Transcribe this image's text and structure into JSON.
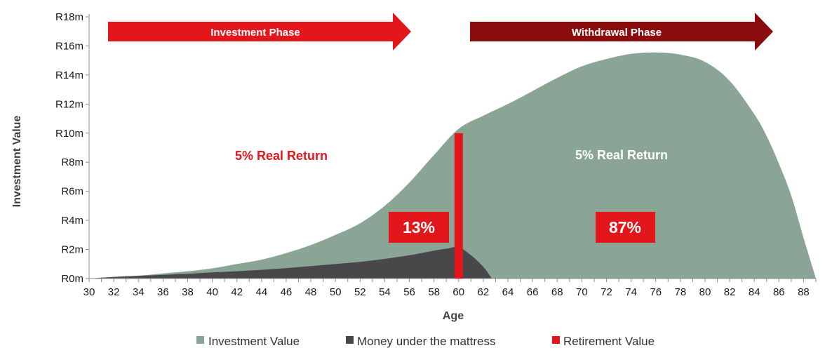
{
  "colors": {
    "investment": "#8aa595",
    "mattress": "#48484a",
    "retirement": "#e3171b",
    "invest_arrow": "#e3171b",
    "withdraw_arrow": "#8b0c0c",
    "text_red": "#e3171b"
  },
  "chart_data": {
    "type": "area",
    "xlabel": "Age",
    "ylabel": "Investment Value",
    "x_ticks": [
      "30",
      "32",
      "34",
      "36",
      "38",
      "40",
      "42",
      "44",
      "46",
      "48",
      "50",
      "52",
      "54",
      "56",
      "58",
      "60",
      "62",
      "64",
      "66",
      "68",
      "70",
      "72",
      "74",
      "76",
      "78",
      "80",
      "82",
      "84",
      "86",
      "88"
    ],
    "y_ticks": [
      "R0m",
      "R2m",
      "R4m",
      "R6m",
      "R8m",
      "R10m",
      "R12m",
      "R14m",
      "R16m",
      "R18m"
    ],
    "xlim": [
      30,
      89
    ],
    "ylim": [
      0,
      18
    ],
    "series": [
      {
        "name": "Investment Value",
        "x": [
          30,
          32,
          34,
          36,
          38,
          40,
          42,
          44,
          46,
          48,
          50,
          52,
          54,
          56,
          58,
          60,
          62,
          64,
          66,
          68,
          70,
          72,
          74,
          76,
          78,
          80,
          82,
          84,
          85,
          86,
          87,
          88,
          89
        ],
        "values": [
          0.0,
          0.12,
          0.2,
          0.35,
          0.5,
          0.7,
          1.0,
          1.3,
          1.75,
          2.3,
          3.0,
          3.8,
          5.0,
          6.6,
          8.5,
          10.3,
          11.2,
          12.0,
          12.9,
          13.8,
          14.6,
          15.1,
          15.45,
          15.55,
          15.4,
          14.9,
          13.6,
          11.3,
          9.8,
          7.9,
          5.7,
          2.8,
          0.0
        ]
      },
      {
        "name": "Money under the mattress",
        "x": [
          30,
          32,
          34,
          36,
          38,
          40,
          42,
          44,
          46,
          48,
          50,
          52,
          54,
          56,
          58,
          59,
          60,
          61,
          62,
          62.7
        ],
        "values": [
          0.0,
          0.1,
          0.18,
          0.25,
          0.33,
          0.42,
          0.5,
          0.6,
          0.72,
          0.86,
          1.0,
          1.15,
          1.35,
          1.6,
          1.92,
          2.05,
          2.15,
          1.6,
          0.8,
          0.0
        ]
      },
      {
        "name": "Retirement Value",
        "type": "bar",
        "x": 60,
        "value": 10.0
      }
    ],
    "annotations": {
      "investment_phase": "Investment Phase",
      "withdrawal_phase": "Withdrawal Phase",
      "left_return": "5% Real Return",
      "right_return": "5% Real Return",
      "left_pct": "13%",
      "right_pct": "87%"
    },
    "legend": [
      "Investment Value",
      "Money under the mattress",
      "Retirement Value"
    ],
    "legend_position": "bottom",
    "grid": false
  }
}
